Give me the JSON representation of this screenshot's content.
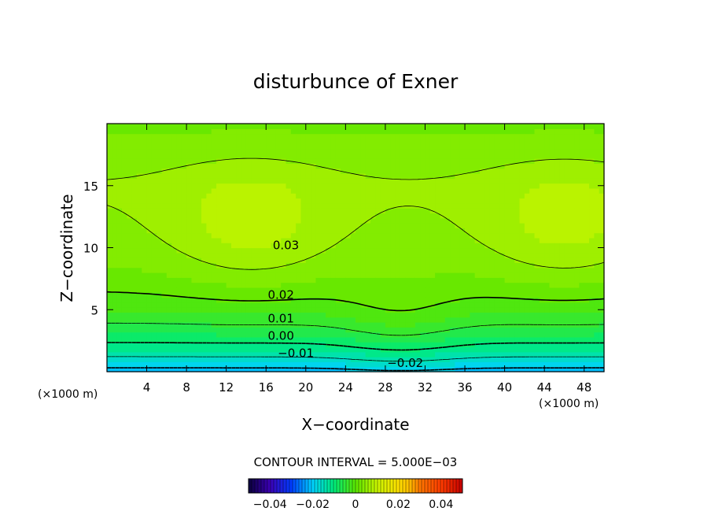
{
  "chart_data": {
    "type": "heatmap",
    "title": "disturbunce of Exner",
    "xlabel": "X−coordinate",
    "ylabel": "Z−coordinate",
    "x_unit_left": "(×1000 m)",
    "x_unit_right": "(×1000 m)",
    "xlim": [
      0,
      50
    ],
    "ylim": [
      0,
      20
    ],
    "xticks": [
      "4",
      "8",
      "12",
      "16",
      "20",
      "24",
      "28",
      "32",
      "36",
      "40",
      "44",
      "48"
    ],
    "xtick_values": [
      4,
      8,
      12,
      16,
      20,
      24,
      28,
      32,
      36,
      40,
      44,
      48
    ],
    "yticks": [
      "5",
      "10",
      "15"
    ],
    "ytick_values": [
      5,
      10,
      15
    ],
    "contour_interval_text": "CONTOUR INTERVAL = 5.000E−03",
    "contour_levels": [
      -0.02,
      -0.015,
      -0.01,
      -0.005,
      0.0,
      0.005,
      0.01,
      0.015,
      0.02,
      0.025,
      0.03
    ],
    "contour_labels": [
      {
        "text": "−0.02",
        "x": 30,
        "y": 0.7
      },
      {
        "text": "−0.01",
        "x": 19,
        "y": 1.5
      },
      {
        "text": "0.00",
        "x": 17.5,
        "y": 2.9
      },
      {
        "text": "0.01",
        "x": 17.5,
        "y": 4.3
      },
      {
        "text": "0.02",
        "x": 17.5,
        "y": 6.2
      },
      {
        "text": "0.03",
        "x": 18,
        "y": 10.2
      }
    ],
    "colorbar": {
      "range": [
        -0.05,
        0.05
      ],
      "tick_labels": [
        "−0.04",
        "−0.02",
        "0",
        "0.02",
        "0.04"
      ],
      "tick_values": [
        -0.04,
        -0.02,
        0,
        0.02,
        0.04
      ]
    },
    "colors": {
      "high": "#ff6a00",
      "mid": "#ffe000",
      "low_green": "#33e600",
      "lowest": "#22d0ff"
    },
    "grid": false
  }
}
